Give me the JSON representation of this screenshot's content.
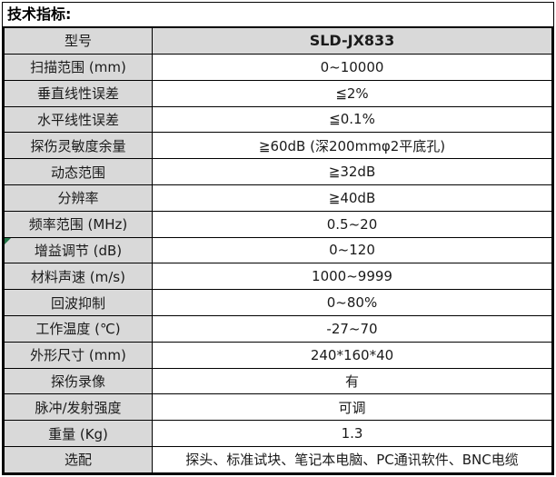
{
  "title": "技术指标:",
  "table": {
    "rows": [
      {
        "label": "型号",
        "value": "SLD-JX833",
        "header": true
      },
      {
        "label": "扫描范围 (mm)",
        "value": "0~10000"
      },
      {
        "label": "垂直线性误差",
        "value": "≦2%"
      },
      {
        "label": "水平线性误差",
        "value": "≦0.1%"
      },
      {
        "label": "探伤灵敏度余量",
        "value": "≧60dB (深200mmφ2平底孔)"
      },
      {
        "label": "动态范围",
        "value": "≧32dB"
      },
      {
        "label": "分辨率",
        "value": "≧40dB"
      },
      {
        "label": "频率范围 (MHz)",
        "value": "0.5~20"
      },
      {
        "label": "增益调节 (dB)",
        "value": "0~120",
        "error_marker": true
      },
      {
        "label": "材料声速 (m/s)",
        "value": "1000~9999"
      },
      {
        "label": "回波抑制",
        "value": "0~80%"
      },
      {
        "label": "工作温度 (℃)",
        "value": "-27~70"
      },
      {
        "label": "外形尺寸 (mm)",
        "value": "240*160*40"
      },
      {
        "label": "探伤录像",
        "value": "有"
      },
      {
        "label": "脉冲/发射强度",
        "value": "可调"
      },
      {
        "label": "重量 (Kg)",
        "value": "1.3"
      },
      {
        "label": "选配",
        "value": "探头、标准试块、笔记本电脑、PC通讯软件、BNC电缆"
      }
    ]
  },
  "colors": {
    "cell_fill_gray": "#d9d9d9",
    "border_black": "#000000",
    "error_marker_green": "#217346",
    "text_black": "#1a1a1a"
  }
}
